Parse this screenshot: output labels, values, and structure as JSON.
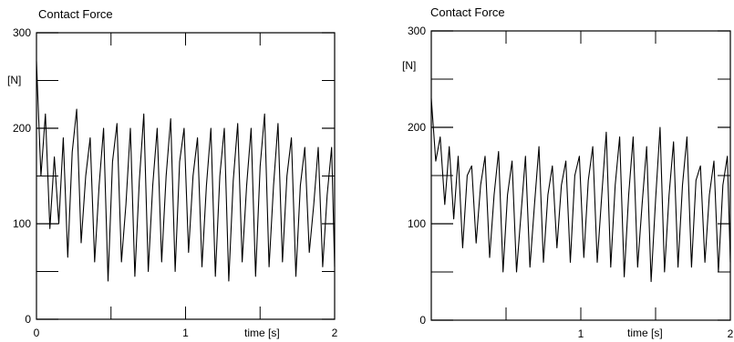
{
  "chart_data": [
    {
      "type": "line",
      "title": "Contact Force",
      "unit_label": "[N]",
      "xlabel": "time [s]",
      "xlim": [
        0,
        2
      ],
      "ylim": [
        0,
        300
      ],
      "x_ticks": [
        0,
        1,
        2
      ],
      "x_tick_labels": [
        "0",
        "1",
        "2"
      ],
      "y_ticks": [
        0,
        100,
        200,
        300
      ],
      "y_tick_labels": [
        "0",
        "100",
        "200",
        "300"
      ],
      "grid": false,
      "legend": "none",
      "line_color": "#000000",
      "series": [
        {
          "x": [
            0.0,
            0.03,
            0.06,
            0.09,
            0.12,
            0.15,
            0.18,
            0.21,
            0.24,
            0.27,
            0.3,
            0.33,
            0.36,
            0.39,
            0.42,
            0.45,
            0.48,
            0.51,
            0.54,
            0.57,
            0.6,
            0.63,
            0.66,
            0.69,
            0.72,
            0.75,
            0.78,
            0.81,
            0.84,
            0.87,
            0.9,
            0.93,
            0.96,
            0.99,
            1.02,
            1.05,
            1.08,
            1.11,
            1.14,
            1.17,
            1.2,
            1.23,
            1.26,
            1.29,
            1.32,
            1.35,
            1.38,
            1.41,
            1.44,
            1.47,
            1.5,
            1.53,
            1.56,
            1.59,
            1.62,
            1.65,
            1.68,
            1.71,
            1.74,
            1.77,
            1.8,
            1.83,
            1.86,
            1.89,
            1.92,
            1.95,
            1.98,
            2.0
          ],
          "y": [
            270,
            150,
            215,
            95,
            170,
            100,
            190,
            65,
            175,
            220,
            80,
            150,
            190,
            60,
            140,
            200,
            40,
            165,
            205,
            60,
            120,
            200,
            45,
            145,
            215,
            50,
            140,
            200,
            60,
            150,
            210,
            50,
            165,
            200,
            70,
            150,
            190,
            55,
            140,
            200,
            45,
            150,
            200,
            40,
            145,
            205,
            60,
            140,
            200,
            45,
            160,
            215,
            55,
            140,
            205,
            60,
            150,
            190,
            45,
            140,
            180,
            70,
            120,
            180,
            55,
            130,
            180,
            55
          ]
        }
      ]
    },
    {
      "type": "line",
      "title": "Contact Force",
      "unit_label": "[N]",
      "xlabel": "time [s]",
      "xlim": [
        0,
        2
      ],
      "ylim": [
        0,
        300
      ],
      "x_ticks": [
        1,
        2
      ],
      "x_tick_labels": [
        "1",
        "2"
      ],
      "y_ticks": [
        0,
        100,
        200,
        300
      ],
      "y_tick_labels": [
        "0",
        "100",
        "200",
        "300"
      ],
      "grid": false,
      "legend": "none",
      "line_color": "#000000",
      "series": [
        {
          "x": [
            0.0,
            0.03,
            0.06,
            0.09,
            0.12,
            0.15,
            0.18,
            0.21,
            0.24,
            0.27,
            0.3,
            0.33,
            0.36,
            0.39,
            0.42,
            0.45,
            0.48,
            0.51,
            0.54,
            0.57,
            0.6,
            0.63,
            0.66,
            0.69,
            0.72,
            0.75,
            0.78,
            0.81,
            0.84,
            0.87,
            0.9,
            0.93,
            0.96,
            0.99,
            1.02,
            1.05,
            1.08,
            1.11,
            1.14,
            1.17,
            1.2,
            1.23,
            1.26,
            1.29,
            1.32,
            1.35,
            1.38,
            1.41,
            1.44,
            1.47,
            1.5,
            1.53,
            1.56,
            1.59,
            1.62,
            1.65,
            1.68,
            1.71,
            1.74,
            1.77,
            1.8,
            1.83,
            1.86,
            1.89,
            1.92,
            1.95,
            1.98,
            2.0
          ],
          "y": [
            230,
            165,
            190,
            120,
            180,
            105,
            170,
            75,
            150,
            160,
            80,
            140,
            170,
            65,
            130,
            175,
            50,
            130,
            165,
            50,
            110,
            170,
            55,
            120,
            180,
            60,
            130,
            160,
            75,
            140,
            165,
            60,
            150,
            170,
            65,
            145,
            180,
            60,
            130,
            195,
            55,
            140,
            190,
            45,
            130,
            190,
            55,
            120,
            180,
            40,
            125,
            200,
            50,
            130,
            185,
            55,
            140,
            190,
            55,
            145,
            160,
            60,
            130,
            165,
            50,
            140,
            170,
            60
          ]
        }
      ]
    }
  ]
}
